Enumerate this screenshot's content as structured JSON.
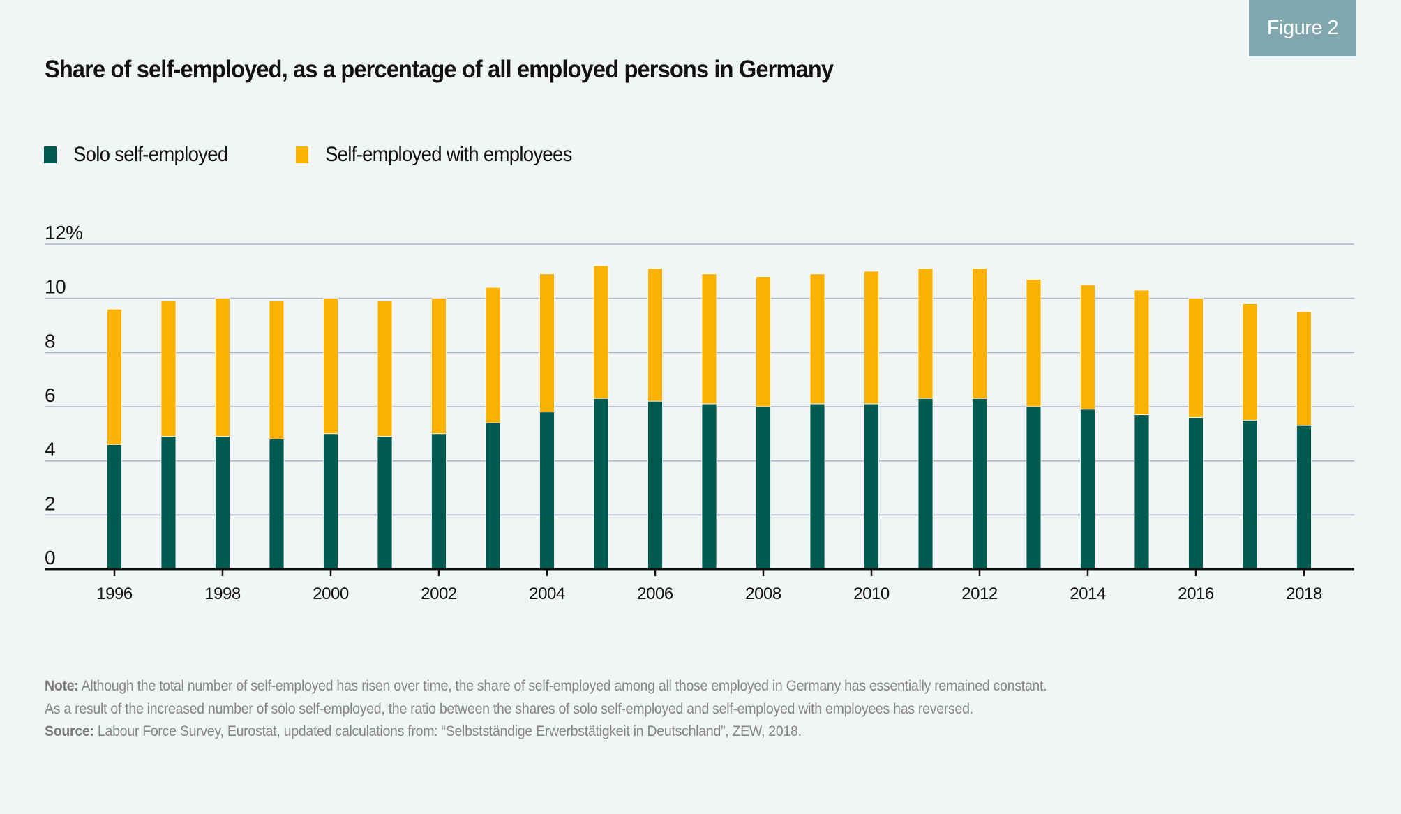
{
  "figure_label": "Figure 2",
  "colors": {
    "background": "#F2F5F6",
    "badge": "#80A8AE",
    "solo": "#005A50",
    "with_employees": "#FBB100",
    "gridline": "#A8B4CC",
    "axis": "#111111",
    "footnote": "#858585"
  },
  "chart_data": {
    "type": "bar",
    "stacked": true,
    "title": "Share of self-employed, as a percentage of all employed persons in Germany",
    "xlabel": "",
    "ylabel": "",
    "ylim": [
      0,
      12
    ],
    "yticks": [
      0,
      2,
      4,
      6,
      8,
      10,
      12
    ],
    "ytick_labels": [
      "0",
      "2",
      "4",
      "6",
      "8",
      "10",
      "12%"
    ],
    "xtick_labels": [
      "1996",
      "1998",
      "2000",
      "2002",
      "2004",
      "2006",
      "2008",
      "2010",
      "2012",
      "2014",
      "2016",
      "2018"
    ],
    "grid": true,
    "legend_position": "top-left",
    "categories": [
      "1996",
      "1997",
      "1998",
      "1999",
      "2000",
      "2001",
      "2002",
      "2003",
      "2004",
      "2005",
      "2006",
      "2007",
      "2008",
      "2009",
      "2010",
      "2011",
      "2012",
      "2013",
      "2014",
      "2015",
      "2016",
      "2017",
      "2018"
    ],
    "series": [
      {
        "name": "Solo self-employed",
        "color": "#005A50",
        "values": [
          4.6,
          4.9,
          4.9,
          4.8,
          5.0,
          4.9,
          5.0,
          5.4,
          5.8,
          6.3,
          6.2,
          6.1,
          6.0,
          6.1,
          6.1,
          6.3,
          6.3,
          6.0,
          5.9,
          5.7,
          5.6,
          5.5,
          5.3
        ]
      },
      {
        "name": "Self-employed with employees",
        "color": "#FBB100",
        "values": [
          5.0,
          5.0,
          5.1,
          5.1,
          5.0,
          5.0,
          5.0,
          5.0,
          5.1,
          4.9,
          4.9,
          4.8,
          4.8,
          4.8,
          4.9,
          4.8,
          4.8,
          4.7,
          4.6,
          4.6,
          4.4,
          4.3,
          4.2
        ]
      }
    ],
    "totals": [
      9.6,
      9.9,
      10.0,
      9.9,
      10.0,
      9.9,
      10.0,
      10.4,
      10.9,
      11.2,
      11.1,
      10.9,
      10.8,
      10.9,
      11.0,
      11.1,
      11.1,
      10.7,
      10.5,
      10.3,
      10.0,
      9.8,
      9.5
    ]
  },
  "legend": [
    {
      "label": "Solo self-employed",
      "color": "#005A50"
    },
    {
      "label": "Self-employed with employees",
      "color": "#FBB100"
    }
  ],
  "footnote": {
    "note_label": "Note:",
    "note_line1": " Although the total number of self-employed has risen over time, the share of self-employed among all those employed in Germany has essentially remained constant.",
    "note_line2": "As a result of the increased number of solo self-employed, the ratio between the shares of solo self-employed and self-employed with employees has reversed.",
    "source_label": "Source:",
    "source_text": " Labour Force Survey, Eurostat, updated calculations from: “Selbstständige Erwerbstätigkeit in Deutschland”, ZEW, 2018."
  }
}
